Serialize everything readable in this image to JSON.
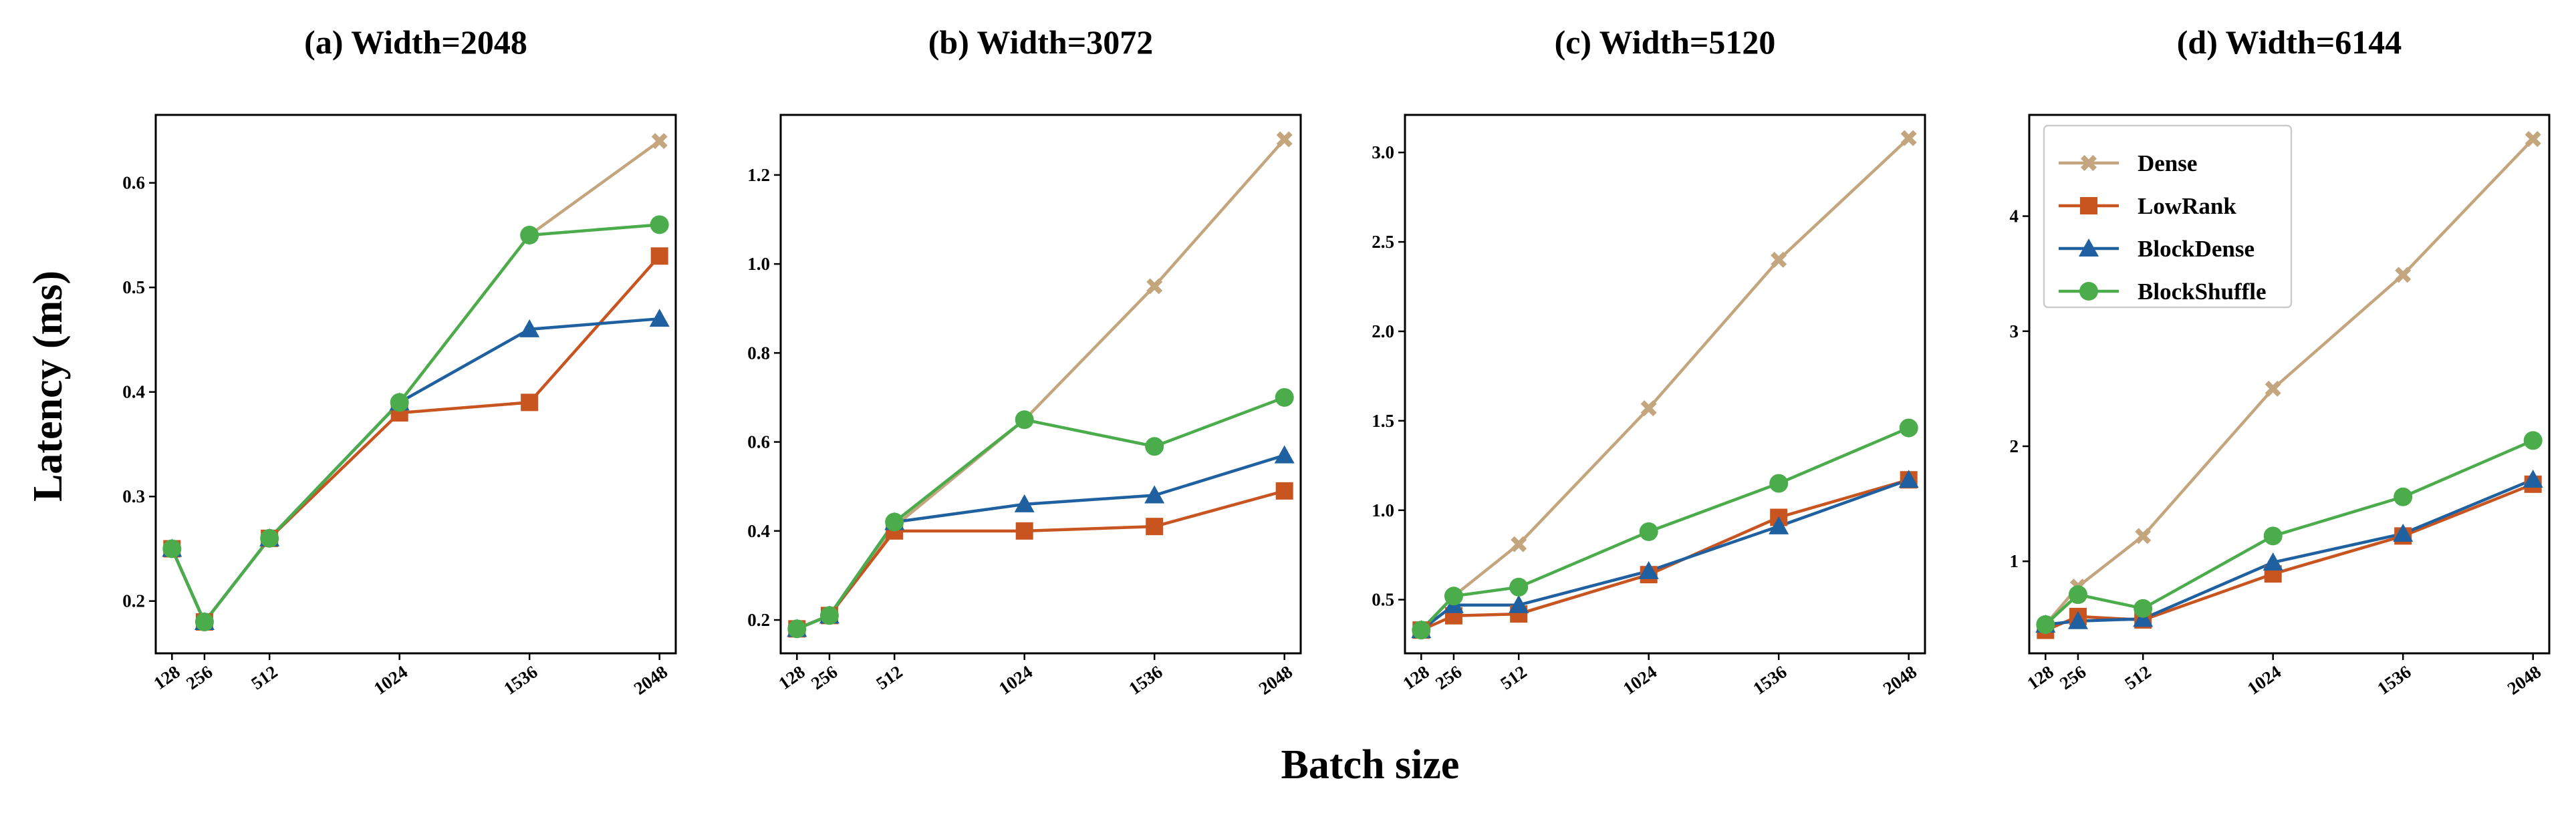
{
  "figure": {
    "ylabel": "Latency (ms)",
    "xlabel": "Batch size",
    "colors": {
      "Dense": "#c3a57e",
      "LowRank": "#c8541f",
      "BlockDense": "#1f60a0",
      "BlockShuffle": "#4aac4a"
    },
    "markers": {
      "Dense": "x-marker",
      "LowRank": "square-marker",
      "BlockDense": "triangle-marker",
      "BlockShuffle": "circle-marker"
    },
    "legend": {
      "panel": 3,
      "placement": "upper-left"
    }
  },
  "chart_data": [
    {
      "type": "line",
      "title": "(a) Width=2048",
      "x": [
        128,
        256,
        512,
        1024,
        1536,
        2048
      ],
      "xtick_labels": [
        "128",
        "256",
        "512",
        "1024",
        "1536",
        "2048"
      ],
      "ylim": [
        0.15,
        0.665
      ],
      "yticks": [
        0.2,
        0.3,
        0.4,
        0.5,
        0.6
      ],
      "ytick_labels": [
        "0.2",
        "0.3",
        "0.4",
        "0.5",
        "0.6"
      ],
      "series": [
        {
          "name": "Dense",
          "values": [
            0.25,
            0.18,
            0.26,
            0.39,
            0.55,
            0.64
          ]
        },
        {
          "name": "LowRank",
          "values": [
            0.25,
            0.18,
            0.26,
            0.38,
            0.39,
            0.53
          ]
        },
        {
          "name": "BlockDense",
          "values": [
            0.25,
            0.18,
            0.26,
            0.39,
            0.46,
            0.47
          ]
        },
        {
          "name": "BlockShuffle",
          "values": [
            0.25,
            0.18,
            0.26,
            0.39,
            0.55,
            0.56
          ]
        }
      ]
    },
    {
      "type": "line",
      "title": "(b) Width=3072",
      "x": [
        128,
        256,
        512,
        1024,
        1536,
        2048
      ],
      "xtick_labels": [
        "128",
        "256",
        "512",
        "1024",
        "1536",
        "2048"
      ],
      "ylim": [
        0.125,
        1.335
      ],
      "yticks": [
        0.2,
        0.4,
        0.6,
        0.8,
        1.0,
        1.2
      ],
      "ytick_labels": [
        "0.2",
        "0.4",
        "0.6",
        "0.8",
        "1.0",
        "1.2"
      ],
      "series": [
        {
          "name": "Dense",
          "values": [
            0.18,
            0.21,
            0.41,
            0.65,
            0.95,
            1.28
          ]
        },
        {
          "name": "LowRank",
          "values": [
            0.18,
            0.21,
            0.4,
            0.4,
            0.41,
            0.49
          ]
        },
        {
          "name": "BlockDense",
          "values": [
            0.18,
            0.21,
            0.42,
            0.46,
            0.48,
            0.57
          ]
        },
        {
          "name": "BlockShuffle",
          "values": [
            0.18,
            0.21,
            0.42,
            0.65,
            0.59,
            0.7
          ]
        }
      ]
    },
    {
      "type": "line",
      "title": "(c) Width=5120",
      "x": [
        128,
        256,
        512,
        1024,
        1536,
        2048
      ],
      "xtick_labels": [
        "128",
        "256",
        "512",
        "1024",
        "1536",
        "2048"
      ],
      "ylim": [
        0.2,
        3.21
      ],
      "yticks": [
        0.5,
        1.0,
        1.5,
        2.0,
        2.5,
        3.0
      ],
      "ytick_labels": [
        "0.5",
        "1.0",
        "1.5",
        "2.0",
        "2.5",
        "3.0"
      ],
      "series": [
        {
          "name": "Dense",
          "values": [
            0.33,
            0.52,
            0.81,
            1.57,
            2.4,
            3.08
          ]
        },
        {
          "name": "LowRank",
          "values": [
            0.33,
            0.41,
            0.42,
            0.64,
            0.96,
            1.17
          ]
        },
        {
          "name": "BlockDense",
          "values": [
            0.33,
            0.47,
            0.47,
            0.66,
            0.91,
            1.17
          ]
        },
        {
          "name": "BlockShuffle",
          "values": [
            0.33,
            0.52,
            0.57,
            0.88,
            1.15,
            1.46
          ]
        }
      ]
    },
    {
      "type": "line",
      "title": "(d) Width=6144",
      "x": [
        128,
        256,
        512,
        1024,
        1536,
        2048
      ],
      "xtick_labels": [
        "128",
        "256",
        "512",
        "1024",
        "1536",
        "2048"
      ],
      "ylim": [
        0.2,
        4.88
      ],
      "yticks": [
        1,
        2,
        3,
        4
      ],
      "ytick_labels": [
        "1",
        "2",
        "3",
        "4"
      ],
      "series": [
        {
          "name": "Dense",
          "values": [
            0.45,
            0.78,
            1.22,
            2.5,
            3.49,
            4.67
          ]
        },
        {
          "name": "LowRank",
          "values": [
            0.4,
            0.52,
            0.49,
            0.89,
            1.22,
            1.67
          ]
        },
        {
          "name": "BlockDense",
          "values": [
            0.45,
            0.48,
            0.5,
            0.99,
            1.24,
            1.71
          ]
        },
        {
          "name": "BlockShuffle",
          "values": [
            0.45,
            0.71,
            0.59,
            1.22,
            1.56,
            2.05
          ]
        }
      ]
    }
  ]
}
